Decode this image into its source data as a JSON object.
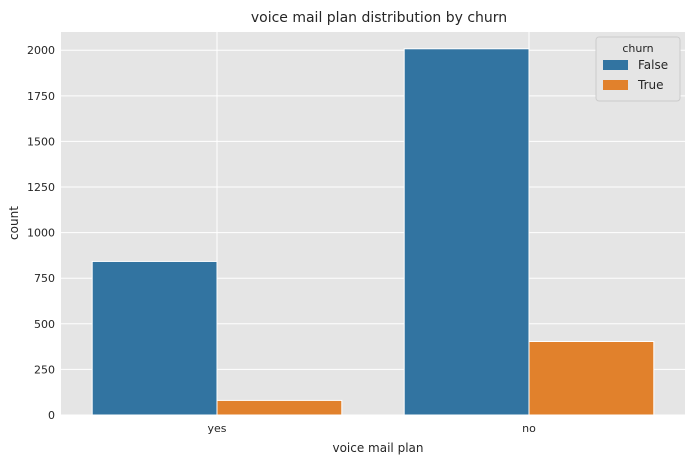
{
  "chart_data": {
    "type": "bar",
    "title": "voice mail plan distribution by churn",
    "xlabel": "voice mail plan",
    "ylabel": "count",
    "categories": [
      "yes",
      "no"
    ],
    "series": [
      {
        "name": "False",
        "values": [
          842,
          2008
        ],
        "color": "#3274a1"
      },
      {
        "name": "True",
        "values": [
          80,
          403
        ],
        "color": "#e1812c"
      }
    ],
    "ylim": [
      0,
      2100
    ],
    "yticks": [
      0,
      250,
      500,
      750,
      1000,
      1250,
      1500,
      1750,
      2000
    ],
    "legend": {
      "title": "churn",
      "placement": "top-right"
    },
    "grid": true,
    "background": "#e5e5e5"
  }
}
